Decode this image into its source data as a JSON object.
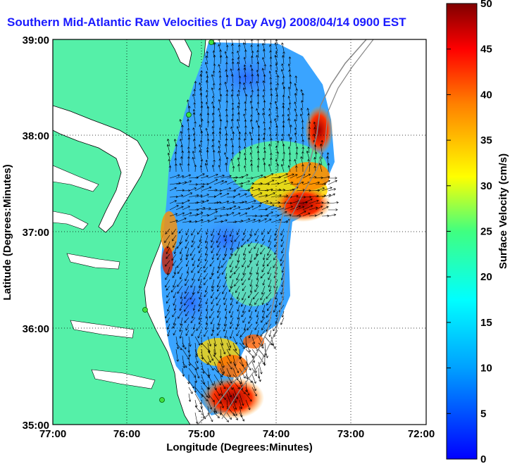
{
  "title": "Southern Mid-Atlantic Raw Velocities (1 Day Avg) 2008/04/14 0900 EST",
  "map": {
    "xlabel": "Longitude (Degrees:Minutes)",
    "ylabel": "Latitude (Degrees:Minutes)",
    "x_ticks": [
      "77:00",
      "76:00",
      "75:00",
      "74:00",
      "73:00",
      "72:00"
    ],
    "y_ticks": [
      "39:00",
      "38:00",
      "37:00",
      "36:00",
      "35:00"
    ],
    "land_color": "#55f0a8",
    "water_color": "#ffffff"
  },
  "colorbar": {
    "label": "Surface Velocity (cm/s)",
    "ticks": [
      "50",
      "45",
      "40",
      "35",
      "30",
      "25",
      "20",
      "15",
      "10",
      "5",
      "0"
    ],
    "min": 0,
    "max": 50,
    "colormap": "jet"
  }
}
